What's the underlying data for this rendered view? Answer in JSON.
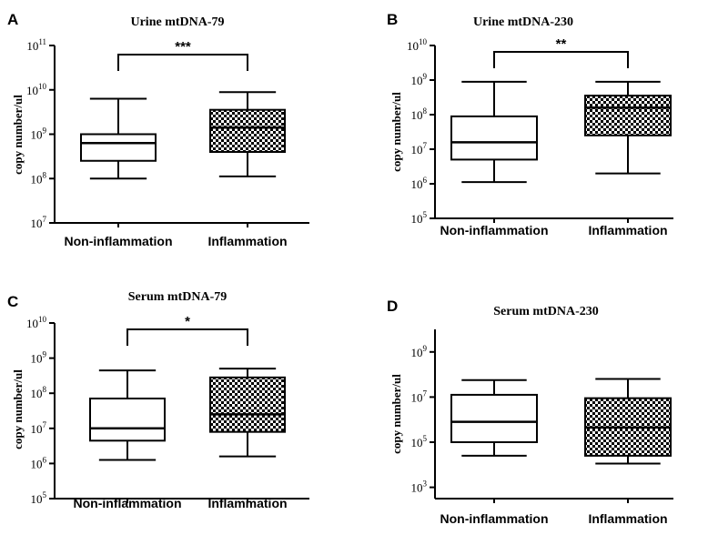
{
  "chart_data": [
    {
      "panel": "A",
      "type": "box",
      "title": "Urine mtDNA-79",
      "ylabel": "copy number/ul",
      "yscale": "log",
      "ytick_base": "10",
      "ytick_exponents": [
        "7",
        "8",
        "9",
        "10",
        "11"
      ],
      "ylim": [
        7,
        11
      ],
      "categories": [
        "Non-inflammation",
        "Inflammation"
      ],
      "boxes": [
        {
          "category": "Non-inflammation",
          "pattern": "plain",
          "whisker_low": 8.0,
          "q1": 8.4,
          "median": 8.8,
          "q3": 9.0,
          "whisker_high": 9.8
        },
        {
          "category": "Inflammation",
          "pattern": "checkered",
          "whisker_low": 8.05,
          "q1": 8.6,
          "median": 9.15,
          "q3": 9.55,
          "whisker_high": 9.95
        }
      ],
      "significance": "***"
    },
    {
      "panel": "B",
      "type": "box",
      "title": "Urine mtDNA-230",
      "ylabel": "copy number/ul",
      "yscale": "log",
      "ytick_base": "10",
      "ytick_exponents": [
        "5",
        "6",
        "7",
        "8",
        "9",
        "10"
      ],
      "ylim": [
        5,
        10
      ],
      "categories": [
        "Non-inflammation",
        "Inflammation"
      ],
      "boxes": [
        {
          "category": "Non-inflammation",
          "pattern": "plain",
          "whisker_low": 6.05,
          "q1": 6.7,
          "median": 7.2,
          "q3": 7.95,
          "whisker_high": 8.95
        },
        {
          "category": "Inflammation",
          "pattern": "checkered",
          "whisker_low": 6.3,
          "q1": 7.4,
          "median": 8.2,
          "q3": 8.55,
          "whisker_high": 8.95
        }
      ],
      "significance": "**"
    },
    {
      "panel": "C",
      "type": "box",
      "title": "Serum mtDNA-79",
      "ylabel": "copy number/ul",
      "yscale": "log",
      "ytick_base": "10",
      "ytick_exponents": [
        "5",
        "6",
        "7",
        "8",
        "9",
        "10"
      ],
      "ylim": [
        5,
        10
      ],
      "categories": [
        "Non-inflammation",
        "Inflammation"
      ],
      "boxes": [
        {
          "category": "Non-inflammation",
          "pattern": "plain",
          "whisker_low": 6.1,
          "q1": 6.65,
          "median": 7.0,
          "q3": 7.85,
          "whisker_high": 8.65
        },
        {
          "category": "Inflammation",
          "pattern": "checkered",
          "whisker_low": 6.2,
          "q1": 6.9,
          "median": 7.4,
          "q3": 8.45,
          "whisker_high": 8.7
        }
      ],
      "significance": "*"
    },
    {
      "panel": "D",
      "type": "box",
      "title": "Serum mtDNA-230",
      "ylabel": "copy number/ul",
      "yscale": "log",
      "ytick_base": "10",
      "ytick_exponents": [
        "3",
        "5",
        "7",
        "9"
      ],
      "ytick_values": [
        3,
        5,
        7,
        9
      ],
      "ylim": [
        2.5,
        10
      ],
      "categories": [
        "Non-inflammation",
        "Inflammation"
      ],
      "boxes": [
        {
          "category": "Non-inflammation",
          "pattern": "plain",
          "whisker_low": 4.4,
          "q1": 5.0,
          "median": 5.9,
          "q3": 7.1,
          "whisker_high": 7.75
        },
        {
          "category": "Inflammation",
          "pattern": "checkered",
          "whisker_low": 4.05,
          "q1": 4.4,
          "median": 5.65,
          "q3": 6.95,
          "whisker_high": 7.8
        }
      ],
      "significance": ""
    }
  ]
}
